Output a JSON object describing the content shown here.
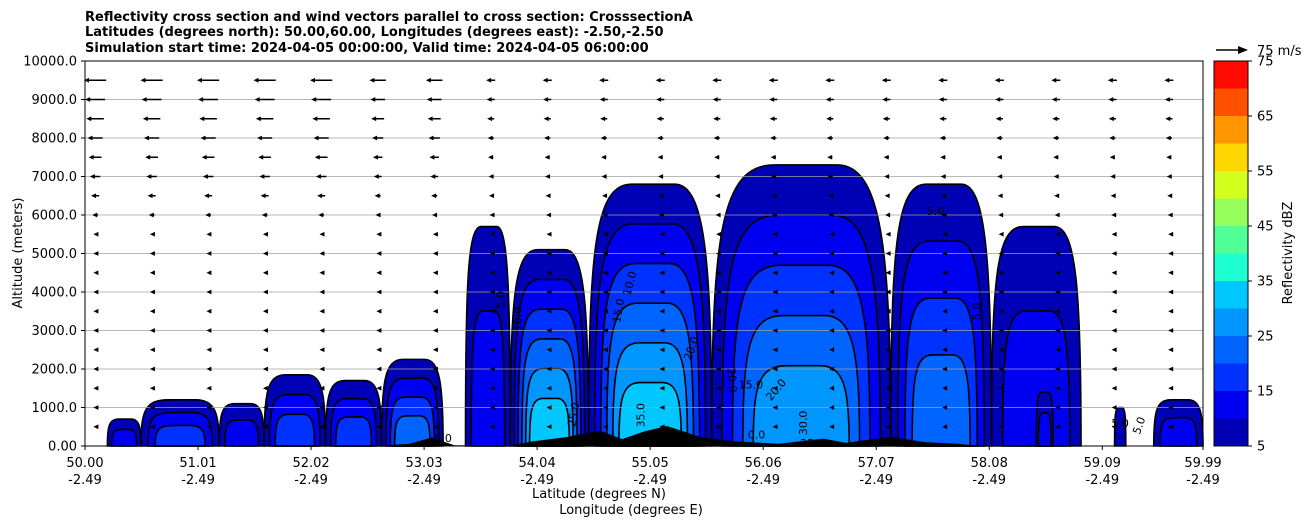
{
  "chart_data": {
    "type": "heatmap",
    "title_lines": [
      "Reflectivity cross section and wind vectors parallel to cross section: CrosssectionA",
      "Latitudes (degrees north): 50.00,60.00, Longitudes (degrees east): -2.50,-2.50",
      "Simulation start time: 2024-04-05 00:00:00, Valid time: 2024-04-05 06:00:00"
    ],
    "ylabel": "Altitude (meters)",
    "xlabel_lat": "Latitude (degrees N)",
    "xlabel_lon": "Longitude (degrees E)",
    "ylim": [
      0,
      10000
    ],
    "yticks": [
      "0.00",
      "1000.0",
      "2000.0",
      "3000.0",
      "4000.0",
      "5000.0",
      "6000.0",
      "7000.0",
      "8000.0",
      "9000.0",
      "10000.0"
    ],
    "xticks": [
      {
        "lat": "50.00",
        "lon": "-2.49"
      },
      {
        "lat": "51.01",
        "lon": "-2.49"
      },
      {
        "lat": "52.02",
        "lon": "-2.49"
      },
      {
        "lat": "53.03",
        "lon": "-2.49"
      },
      {
        "lat": "54.04",
        "lon": "-2.49"
      },
      {
        "lat": "55.05",
        "lon": "-2.49"
      },
      {
        "lat": "56.06",
        "lon": "-2.49"
      },
      {
        "lat": "57.07",
        "lon": "-2.49"
      },
      {
        "lat": "58.08",
        "lon": "-2.49"
      },
      {
        "lat": "59.09",
        "lon": "-2.49"
      },
      {
        "lat": "59.99",
        "lon": "-2.49"
      }
    ],
    "grid": "horizontal",
    "colorbar": {
      "label": "Reflectivity dBZ",
      "levels": [
        5,
        10,
        15,
        20,
        25,
        30,
        35,
        40,
        45,
        50,
        55,
        60,
        65,
        70,
        75
      ],
      "tick_labels": [
        "5",
        "15",
        "25",
        "35",
        "45",
        "55",
        "65",
        "75"
      ],
      "colors": [
        "#0000b4",
        "#0000f0",
        "#0032ff",
        "#0064ff",
        "#0096ff",
        "#00c8ff",
        "#1effd2",
        "#50ff96",
        "#96ff5a",
        "#d2ff1e",
        "#ffd700",
        "#ff9600",
        "#ff5000",
        "#ff0a00",
        "#aa0000"
      ]
    },
    "wind_key_label": "75 m/s",
    "contour_labels": [
      "5.0",
      "10.0",
      "15.0",
      "20.0",
      "25.0",
      "30.0",
      "35.0",
      "5:0",
      "0.0"
    ],
    "cells": [
      {
        "x0": 50.2,
        "x1": 50.5,
        "top": 700,
        "max_dbz": 15
      },
      {
        "x0": 50.5,
        "x1": 51.2,
        "top": 1200,
        "max_dbz": 20
      },
      {
        "x0": 51.2,
        "x1": 51.6,
        "top": 1100,
        "max_dbz": 15
      },
      {
        "x0": 51.6,
        "x1": 52.15,
        "top": 1850,
        "max_dbz": 20
      },
      {
        "x0": 52.15,
        "x1": 52.65,
        "top": 1700,
        "max_dbz": 20
      },
      {
        "x0": 52.65,
        "x1": 53.2,
        "top": 2250,
        "max_dbz": 25
      },
      {
        "x0": 53.4,
        "x1": 53.8,
        "top": 5700,
        "max_dbz": 15
      },
      {
        "x0": 53.8,
        "x1": 54.5,
        "top": 5100,
        "max_dbz": 35
      },
      {
        "x0": 54.5,
        "x1": 55.6,
        "top": 6800,
        "max_dbz": 35
      },
      {
        "x0": 55.6,
        "x1": 57.2,
        "top": 7300,
        "max_dbz": 30
      },
      {
        "x0": 57.2,
        "x1": 58.1,
        "top": 6800,
        "max_dbz": 25
      },
      {
        "x0": 58.1,
        "x1": 58.9,
        "top": 5700,
        "max_dbz": 15
      },
      {
        "x0": 58.5,
        "x1": 58.65,
        "top": 1400,
        "max_dbz": 15
      },
      {
        "x0": 59.2,
        "x1": 59.3,
        "top": 1000,
        "max_dbz": 10
      },
      {
        "x0": 59.55,
        "x1": 59.99,
        "top": 1200,
        "max_dbz": 15
      }
    ]
  }
}
